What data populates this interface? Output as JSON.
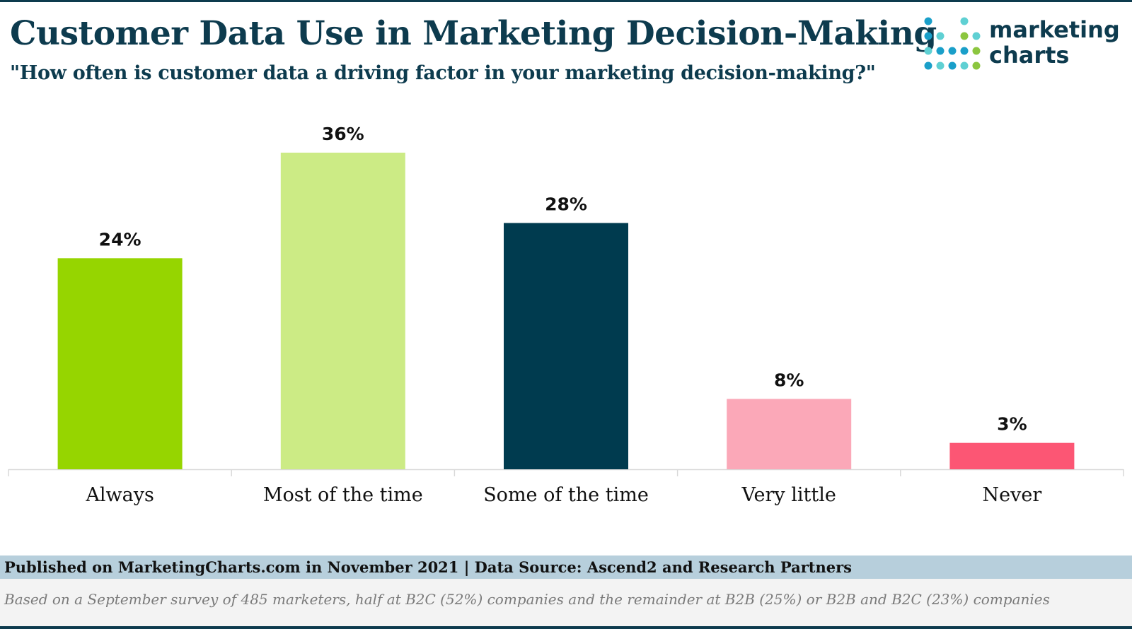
{
  "header": {
    "title": "Customer Data Use in Marketing Decision-Making",
    "subtitle": "\"How often is customer data a driving factor in your marketing decision-making?\""
  },
  "logo": {
    "line1": "marketing",
    "line2": "charts",
    "text_color": "#0d3b4e",
    "dot_colors": [
      "#1a9fc9",
      "#5fd0d3",
      "#8cc63f"
    ]
  },
  "chart_data": {
    "type": "bar",
    "title": "Customer Data Use in Marketing Decision-Making",
    "subtitle": "\"How often is customer data a driving factor in your marketing decision-making?\"",
    "categories": [
      "Always",
      "Most of the time",
      "Some of the time",
      "Very little",
      "Never"
    ],
    "values": [
      24,
      36,
      28,
      8,
      3
    ],
    "value_labels": [
      "24%",
      "36%",
      "28%",
      "8%",
      "3%"
    ],
    "colors": [
      "#96d500",
      "#cceb85",
      "#003b4f",
      "#fba8b8",
      "#fc5674"
    ],
    "ylim": [
      0,
      36
    ],
    "xlabel": "",
    "ylabel": "",
    "grid": false,
    "legend": "none"
  },
  "footer": {
    "published": "Published on MarketingCharts.com in November 2021 | Data Source: Ascend2 and Research Partners",
    "note": "Based on a September survey of 485 marketers, half at B2C (52%) companies and the remainder at B2B (25%) or B2B and B2C (23%) companies"
  }
}
